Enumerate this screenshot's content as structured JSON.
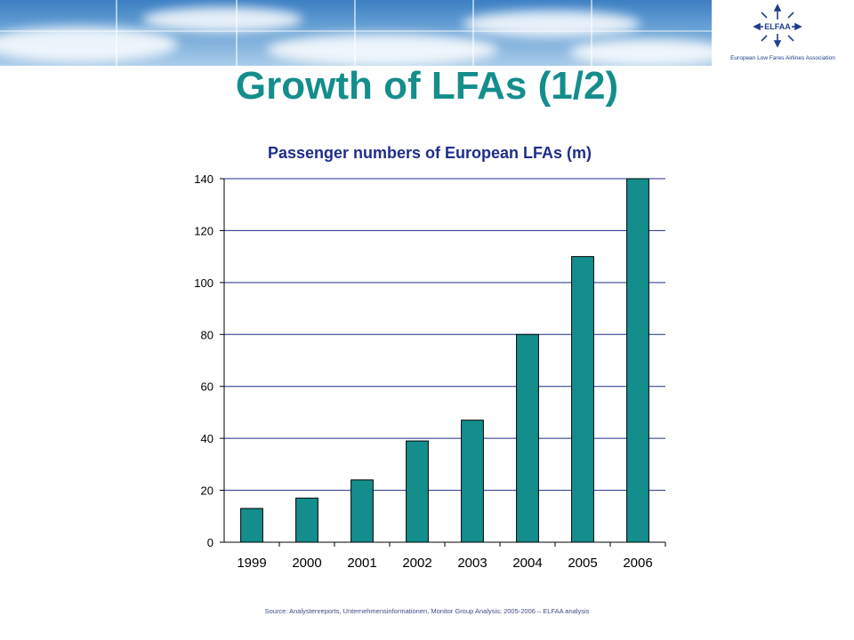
{
  "header": {
    "logo_text": "ELFAA",
    "logo_caption": "European  Low  Fares  Airlines Association"
  },
  "slide": {
    "title": "Growth of LFAs (1/2)",
    "source": "Source: Analystenreports, Unternehmensinformationen, Monitor Group Analysis; 2005-2006 – ELFAA analysis"
  },
  "colors": {
    "title": "#138e8c",
    "bar": "#138e8c",
    "gridline": "#1f2e8a",
    "chart_title": "#1f2e8a"
  },
  "chart_data": {
    "type": "bar",
    "title": "Passenger numbers of European LFAs (m)",
    "xlabel": "",
    "ylabel": "",
    "categories": [
      "1999",
      "2000",
      "2001",
      "2002",
      "2003",
      "2004",
      "2005",
      "2006"
    ],
    "values": [
      13,
      17,
      24,
      39,
      47,
      80,
      110,
      140
    ],
    "ylim": [
      0,
      140
    ],
    "yticks": [
      0,
      20,
      40,
      60,
      80,
      100,
      120,
      140
    ],
    "grid": true,
    "legend": "none"
  }
}
